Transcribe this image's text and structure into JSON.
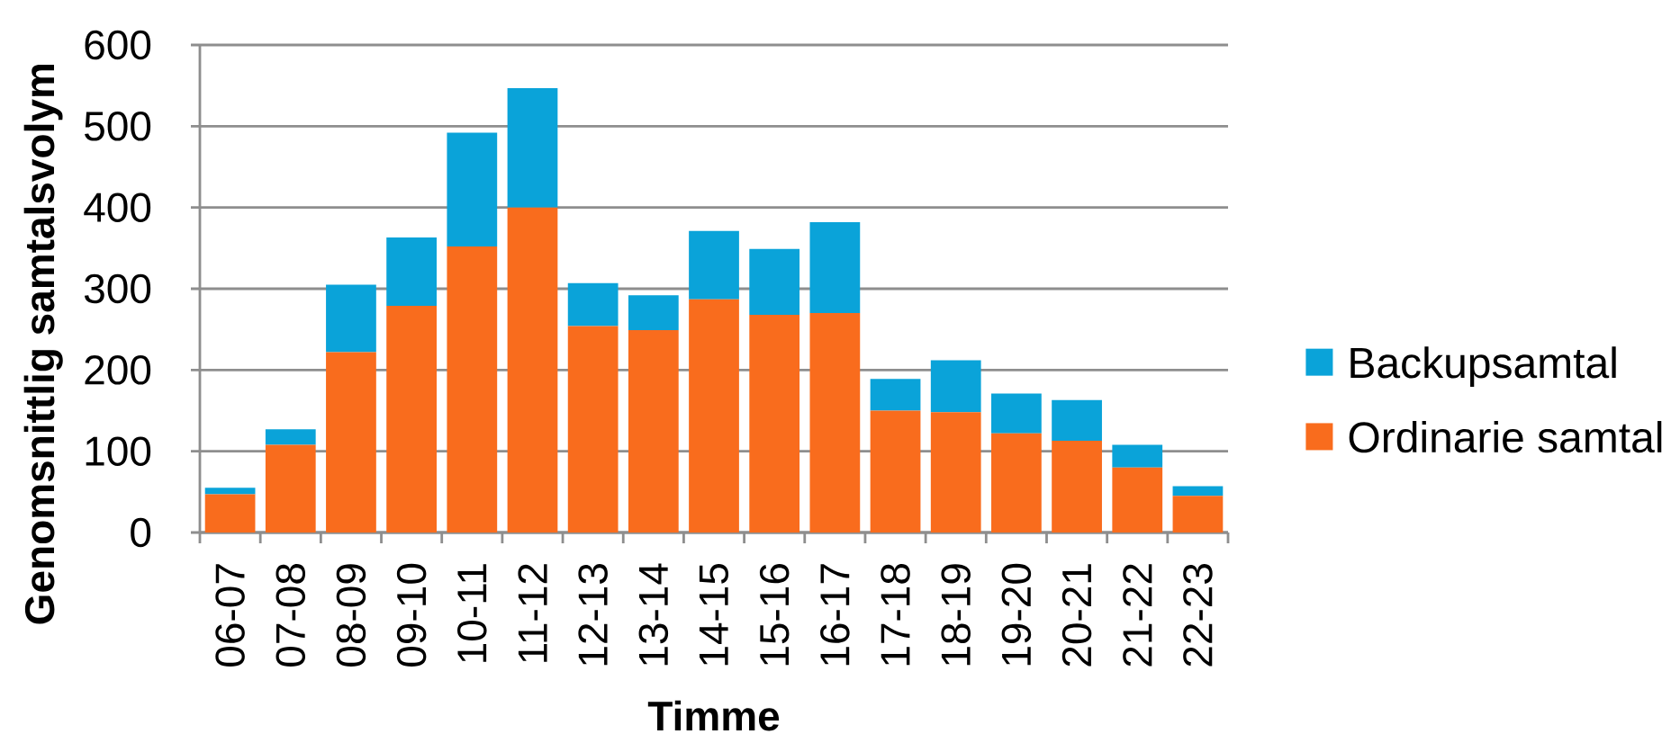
{
  "chart_data": {
    "type": "bar",
    "stacked": true,
    "xlabel": "Timme",
    "ylabel": "Genomsnittlig samtalsvolym",
    "categories": [
      "06-07",
      "07-08",
      "08-09",
      "09-10",
      "10-11",
      "11-12",
      "12-13",
      "13-14",
      "14-15",
      "15-16",
      "16-17",
      "17-18",
      "18-19",
      "19-20",
      "20-21",
      "21-22",
      "22-23"
    ],
    "series": [
      {
        "name": "Ordinarie samtal",
        "color": "#f96c1d",
        "values": [
          47,
          108,
          222,
          279,
          352,
          400,
          254,
          249,
          287,
          268,
          270,
          150,
          148,
          122,
          113,
          80,
          45
        ]
      },
      {
        "name": "Backupsamtal",
        "color": "#0aa3d9",
        "values": [
          8,
          19,
          83,
          84,
          140,
          147,
          53,
          43,
          84,
          81,
          112,
          39,
          64,
          49,
          50,
          28,
          12
        ]
      }
    ],
    "ylim": [
      0,
      600
    ],
    "yticks": [
      0,
      100,
      200,
      300,
      400,
      500,
      600
    ],
    "grid": "y",
    "legend": "right"
  }
}
